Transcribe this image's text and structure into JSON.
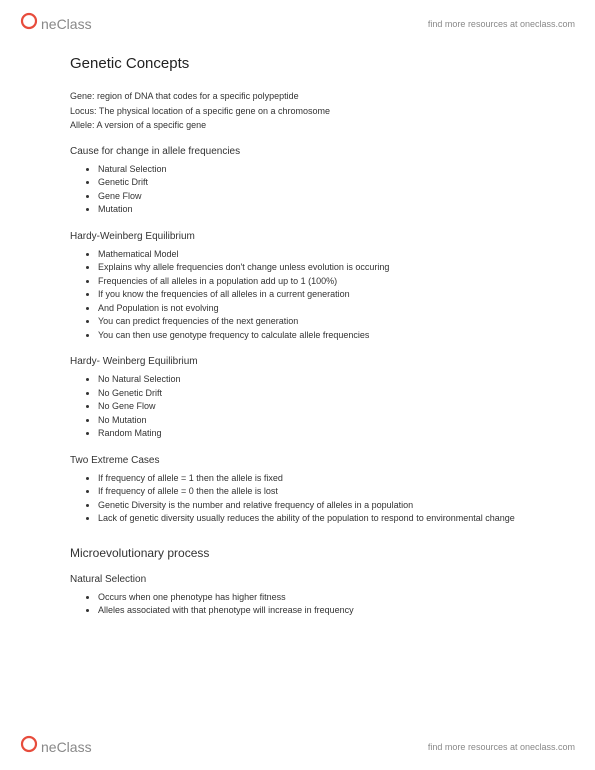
{
  "header": {
    "logo_text": "neClass",
    "link_text": "find more resources at oneclass.com"
  },
  "footer": {
    "logo_text": "neClass",
    "link_text": "find more resources at oneclass.com"
  },
  "title": "Genetic Concepts",
  "definitions": [
    {
      "term": "Gene:",
      "body": " region of DNA that codes for a specific polypeptide"
    },
    {
      "term": "Locus:",
      "body": " The physical location of a specific gene on a chromosome"
    },
    {
      "term": "Allele:",
      "body": " A version of a specific gene"
    }
  ],
  "sections": [
    {
      "heading": "Cause for change in allele frequencies",
      "bullets": [
        "Natural Selection",
        "Genetic Drift",
        "Gene Flow",
        "Mutation"
      ]
    },
    {
      "heading": "Hardy-Weinberg Equilibrium",
      "bullets": [
        "Mathematical Model",
        "Explains why allele frequencies don't change unless evolution is occuring",
        "Frequencies of all alleles in a population add up to 1 (100%)",
        "If you know the frequencies of all alleles in a current generation",
        "And Population is not evolving",
        "You can predict frequencies of the next generation",
        "You can then use genotype frequency to calculate allele frequencies"
      ]
    },
    {
      "heading": "Hardy- Weinberg Equilibrium",
      "bullets": [
        "No Natural Selection",
        "No Genetic Drift",
        "No Gene Flow",
        "No Mutation",
        "Random Mating"
      ]
    },
    {
      "heading": "Two Extreme Cases",
      "bullets": [
        "If frequency of allele = 1 then the allele is fixed",
        "If frequency of allele = 0 then the allele is lost",
        "Genetic Diversity is the number and relative frequency of alleles in a population",
        "Lack of genetic diversity usually reduces the ability of the population to respond to environmental change"
      ]
    }
  ],
  "subheading": "Microevolutionary process",
  "subsections": [
    {
      "heading": "Natural Selection",
      "bullets": [
        "Occurs when one phenotype has higher fitness",
        "Alleles associated with that phenotype will increase in frequency"
      ]
    }
  ],
  "logo_colors": {
    "red": "#e74c3c",
    "gray": "#888888"
  }
}
